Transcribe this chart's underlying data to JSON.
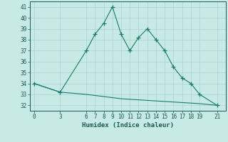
{
  "xlabel": "Humidex (Indice chaleur)",
  "line1_x": [
    0,
    3,
    6,
    7,
    8,
    9,
    10,
    11,
    12,
    13,
    14,
    15,
    16,
    17,
    18,
    19,
    21
  ],
  "line1_y": [
    34.0,
    33.2,
    37.0,
    38.5,
    39.5,
    41.0,
    38.5,
    37.0,
    38.2,
    39.0,
    38.0,
    37.0,
    35.5,
    34.5,
    34.0,
    33.0,
    32.0
  ],
  "line2_x": [
    0,
    3,
    6,
    7,
    8,
    9,
    10,
    11,
    12,
    13,
    14,
    15,
    16,
    17,
    18,
    19,
    21
  ],
  "line2_y": [
    34.0,
    33.2,
    33.0,
    32.9,
    32.8,
    32.7,
    32.6,
    32.55,
    32.5,
    32.45,
    32.4,
    32.35,
    32.3,
    32.25,
    32.2,
    32.15,
    32.0
  ],
  "line_color": "#1a7a6e",
  "bg_color": "#c8eae4",
  "grid_color": "#a8d4ce",
  "text_color": "#1a5a50",
  "ylim": [
    31.5,
    41.5
  ],
  "xlim": [
    -0.5,
    22
  ],
  "xticks": [
    0,
    3,
    6,
    7,
    8,
    9,
    10,
    11,
    12,
    13,
    14,
    15,
    16,
    17,
    18,
    19,
    21
  ],
  "yticks": [
    32,
    33,
    34,
    35,
    36,
    37,
    38,
    39,
    40,
    41
  ],
  "marker": "+"
}
